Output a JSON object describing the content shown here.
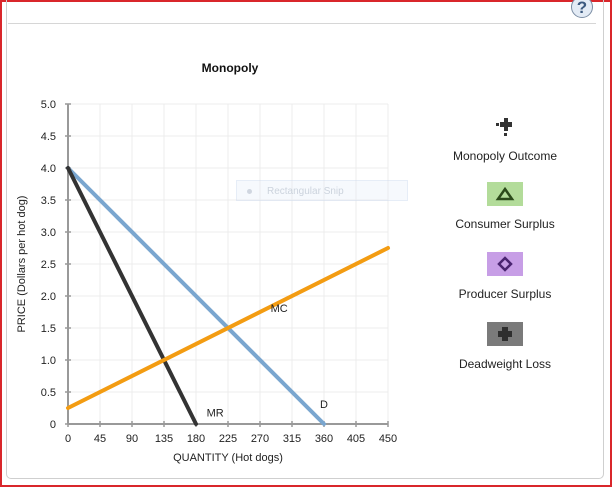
{
  "window": {
    "help_label": "?"
  },
  "overlay": {
    "snip_text": "Rectangular Snip"
  },
  "legend": {
    "items": [
      {
        "label": "Monopoly Outcome",
        "icon": "dotted-plus-marker",
        "color": "#333333",
        "bg": "transparent"
      },
      {
        "label": "Consumer Surplus",
        "icon": "triangle-marker",
        "color": "#2b4a1a",
        "bg": "#b3dc9a"
      },
      {
        "label": "Producer Surplus",
        "icon": "diamond-marker",
        "color": "#4a2470",
        "bg": "#c79ee6"
      },
      {
        "label": "Deadweight Loss",
        "icon": "plus-marker",
        "color": "#2e2e2e",
        "bg": "#7a7a7a"
      }
    ]
  },
  "chart_data": {
    "type": "line",
    "title": "Monopoly",
    "xlabel": "QUANTITY (Hot dogs)",
    "ylabel": "PRICE (Dollars per hot dog)",
    "xlim": [
      0,
      450
    ],
    "ylim": [
      0,
      5.0
    ],
    "x_ticks": [
      "0",
      "45",
      "90",
      "135",
      "180",
      "225",
      "270",
      "315",
      "360",
      "405",
      "450"
    ],
    "y_ticks": [
      "0",
      "0.5",
      "1.0",
      "1.5",
      "2.0",
      "2.5",
      "3.0",
      "3.5",
      "4.0",
      "4.5",
      "5.0"
    ],
    "grid": true,
    "series": [
      {
        "name": "D",
        "color": "#7aa6cf",
        "points": [
          [
            0,
            4.0
          ],
          [
            360,
            0
          ]
        ]
      },
      {
        "name": "MR",
        "color": "#333333",
        "points": [
          [
            0,
            4.0
          ],
          [
            180,
            0
          ]
        ]
      },
      {
        "name": "MC",
        "color": "#f39c12",
        "points": [
          [
            0,
            0.25
          ],
          [
            450,
            2.75
          ]
        ]
      }
    ],
    "annotations": [
      {
        "text": "MC",
        "x": 297,
        "y": 1.75
      },
      {
        "text": "D",
        "x": 360,
        "y": 0.25
      },
      {
        "text": "MR",
        "x": 207,
        "y": 0.12
      }
    ]
  }
}
